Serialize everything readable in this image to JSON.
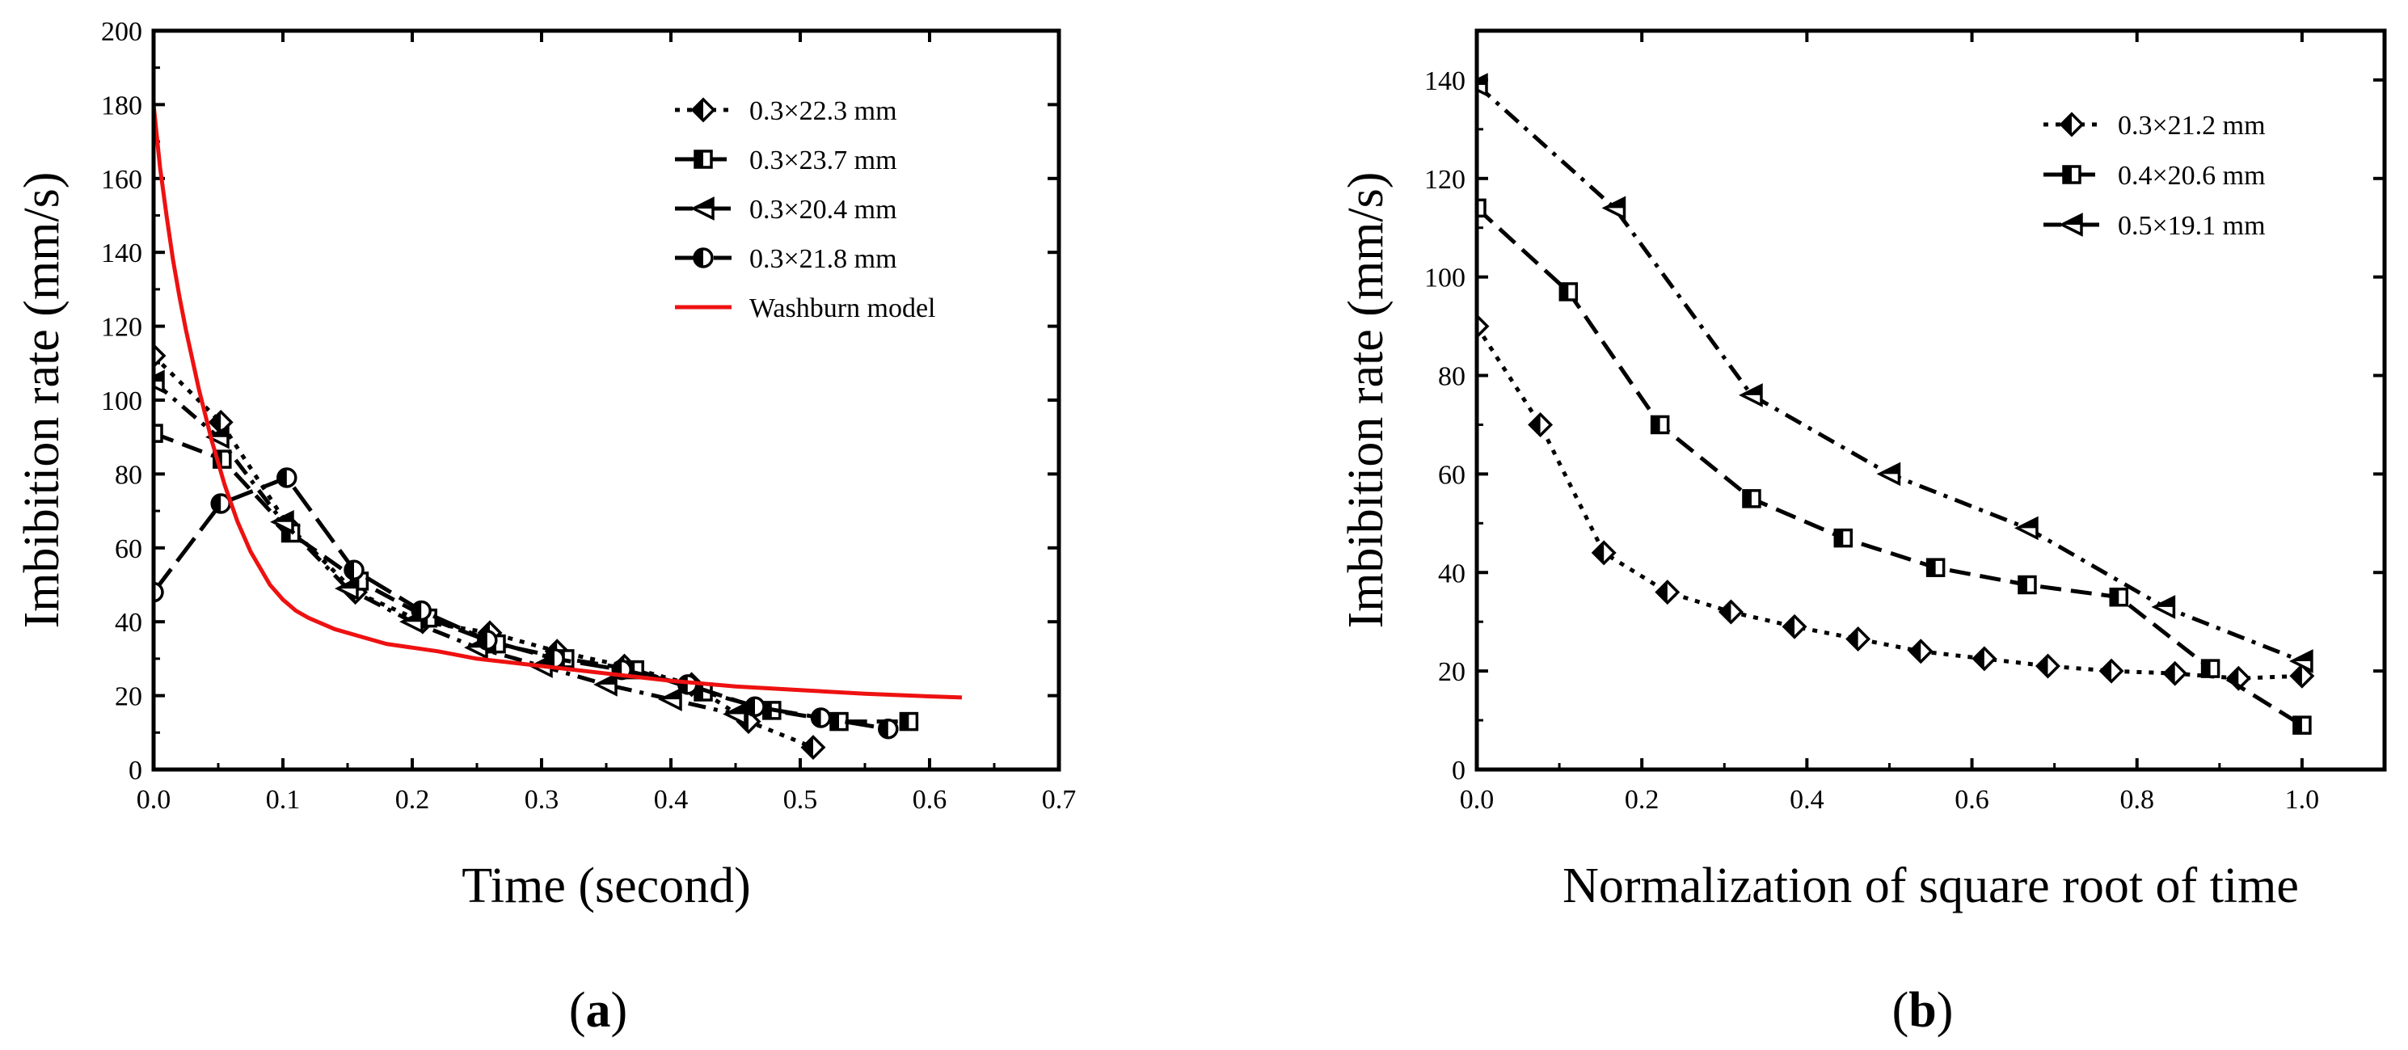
{
  "chart_data": [
    {
      "type": "line",
      "panel_label": "(a)",
      "xlabel": "Time (second)",
      "ylabel": "Imbibition rate (mm/s)",
      "xlim": [
        0,
        0.7
      ],
      "ylim": [
        0,
        200
      ],
      "xticks": [
        0.0,
        0.1,
        0.2,
        0.3,
        0.4,
        0.5,
        0.6,
        0.7
      ],
      "xtick_labels": [
        "0.0",
        "0.1",
        "0.2",
        "0.3",
        "0.4",
        "0.5",
        "0.6",
        "0.7"
      ],
      "yticks": [
        0,
        20,
        40,
        60,
        80,
        100,
        120,
        140,
        160,
        180,
        200
      ],
      "ytick_labels": [
        "0",
        "20",
        "40",
        "60",
        "80",
        "100",
        "120",
        "140",
        "160",
        "180",
        "200"
      ],
      "legend_position": "top-right",
      "series": [
        {
          "name": "0.3×22.3 mm",
          "dash": "dot",
          "marker": "diamond",
          "x": [
            0.0,
            0.052,
            0.104,
            0.156,
            0.208,
            0.26,
            0.312,
            0.364,
            0.416,
            0.46,
            0.51
          ],
          "y": [
            112,
            94,
            66,
            48,
            40,
            37,
            32,
            28,
            23,
            13,
            6
          ]
        },
        {
          "name": "0.3×23.7 mm",
          "dash": "dash",
          "marker": "square",
          "x": [
            0.0,
            0.053,
            0.106,
            0.159,
            0.212,
            0.265,
            0.318,
            0.372,
            0.425,
            0.478,
            0.53,
            0.584
          ],
          "y": [
            91,
            84,
            64,
            51,
            41,
            34,
            30,
            27,
            21,
            16,
            13,
            13
          ]
        },
        {
          "name": "0.3×20.4 mm",
          "dash": "dashdot",
          "marker": "triangle",
          "x": [
            0.0,
            0.05,
            0.1,
            0.15,
            0.2,
            0.25,
            0.3,
            0.35,
            0.4,
            0.45
          ],
          "y": [
            105,
            90,
            67,
            49,
            40,
            33,
            28,
            23,
            19,
            15
          ]
        },
        {
          "name": "0.3×21.8 mm",
          "dash": "longdash",
          "marker": "circle",
          "x": [
            0.0,
            0.052,
            0.103,
            0.155,
            0.207,
            0.258,
            0.31,
            0.362,
            0.413,
            0.465,
            0.516,
            0.568
          ],
          "y": [
            48,
            72,
            79,
            54,
            43,
            35,
            30,
            27,
            23,
            17,
            14,
            11
          ]
        },
        {
          "name": "Washburn model",
          "dash": "solid",
          "marker": "none",
          "color": "#ee1111",
          "x": [
            0.0,
            0.005,
            0.01,
            0.015,
            0.02,
            0.025,
            0.03,
            0.035,
            0.04,
            0.045,
            0.05,
            0.055,
            0.06,
            0.065,
            0.07,
            0.075,
            0.08,
            0.09,
            0.1,
            0.11,
            0.12,
            0.14,
            0.16,
            0.18,
            0.2,
            0.22,
            0.25,
            0.3,
            0.35,
            0.4,
            0.45,
            0.5,
            0.55,
            0.6,
            0.625
          ],
          "y": [
            180,
            163,
            150,
            138,
            128,
            119,
            111,
            103,
            96,
            89,
            83,
            77,
            72,
            67,
            63,
            59,
            56,
            50,
            46,
            43,
            41,
            38,
            36,
            34,
            33,
            32,
            30,
            28,
            26,
            24,
            22.5,
            21.5,
            20.5,
            19.8,
            19.5
          ]
        }
      ]
    },
    {
      "type": "line",
      "panel_label": "(b)",
      "xlabel": "Normalization of square root of time",
      "ylabel": "Imbibition rate (mm/s)",
      "xlim": [
        0,
        1.1
      ],
      "ylim": [
        0,
        150
      ],
      "xticks": [
        0.0,
        0.2,
        0.4,
        0.6,
        0.8,
        1.0
      ],
      "xtick_labels": [
        "0.0",
        "0.2",
        "0.4",
        "0.6",
        "0.8",
        "1.0"
      ],
      "yticks": [
        0,
        20,
        40,
        60,
        80,
        100,
        120,
        140
      ],
      "ytick_labels": [
        "0",
        "20",
        "40",
        "60",
        "80",
        "100",
        "120",
        "140"
      ],
      "legend_position": "top-right",
      "series": [
        {
          "name": "0.3×21.2 mm",
          "dash": "dot",
          "marker": "diamond",
          "x": [
            0.0,
            0.077,
            0.154,
            0.231,
            0.308,
            0.385,
            0.462,
            0.538,
            0.615,
            0.692,
            0.769,
            0.846,
            0.923,
            1.0
          ],
          "y": [
            90,
            70,
            44,
            36,
            32,
            29,
            26.5,
            24,
            22.5,
            21,
            20,
            19.5,
            18.5,
            19
          ]
        },
        {
          "name": "0.4×20.6 mm",
          "dash": "dash",
          "marker": "square",
          "x": [
            0.0,
            0.111,
            0.222,
            0.333,
            0.444,
            0.556,
            0.667,
            0.778,
            0.889,
            1.0
          ],
          "y": [
            114,
            97,
            70,
            55,
            47,
            41,
            37.5,
            35,
            20.5,
            9
          ]
        },
        {
          "name": "0.5×19.1 mm",
          "dash": "dashdot",
          "marker": "triangle",
          "x": [
            0.0,
            0.167,
            0.333,
            0.5,
            0.667,
            0.833,
            1.0
          ],
          "y": [
            139,
            114,
            76,
            60,
            49,
            33,
            22
          ]
        }
      ]
    }
  ]
}
